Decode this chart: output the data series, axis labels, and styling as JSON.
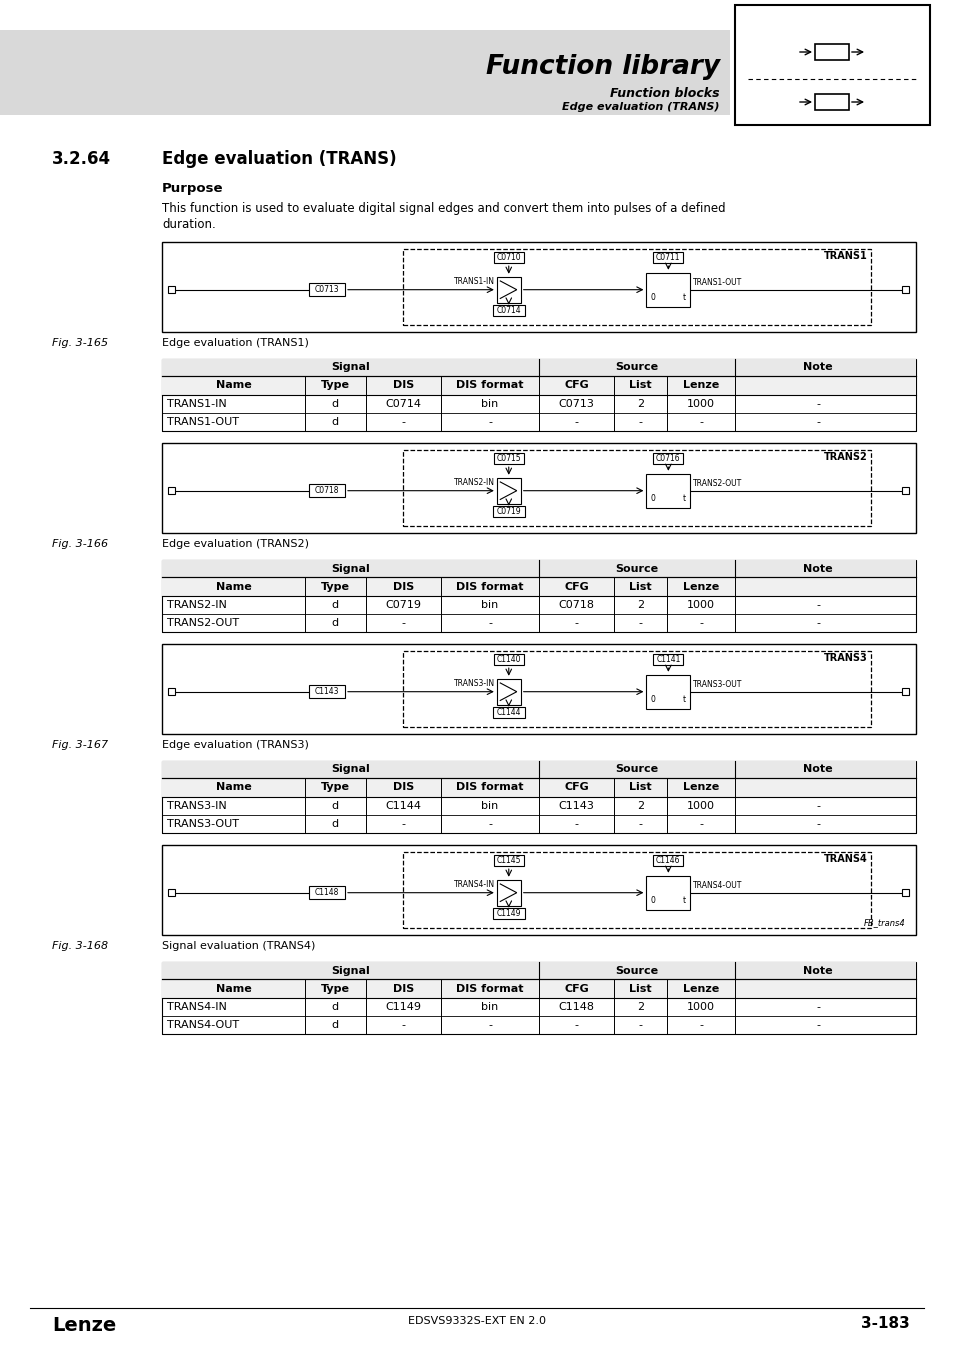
{
  "page_bg": "#ffffff",
  "header_bg": "#d9d9d9",
  "header_title": "Function library",
  "header_sub1": "Function blocks",
  "header_sub2": "Edge evaluation (TRANS)",
  "section_num": "3.2.64",
  "section_name": "Edge evaluation (TRANS)",
  "purpose_heading": "Purpose",
  "purpose_text1": "This function is used to evaluate digital signal edges and convert them into pulses of a defined",
  "purpose_text2": "duration.",
  "figures": [
    {
      "fig_label": "Fig. 3-165",
      "fig_caption": "Edge evaluation (TRANS1)",
      "diagram": {
        "block_name": "TRANS1",
        "input_code": "C0713",
        "dis_code": "C0714",
        "top_code1": "C0710",
        "top_code2": "C0711",
        "in_label": "TRANS1-IN",
        "out_label": "TRANS1-OUT",
        "extra_label": null
      },
      "table_rows": [
        [
          "TRANS1-IN",
          "d",
          "C0714",
          "bin",
          "C0713",
          "2",
          "1000",
          "-"
        ],
        [
          "TRANS1-OUT",
          "d",
          "-",
          "-",
          "-",
          "-",
          "-",
          "-"
        ]
      ]
    },
    {
      "fig_label": "Fig. 3-166",
      "fig_caption": "Edge evaluation (TRANS2)",
      "diagram": {
        "block_name": "TRANS2",
        "input_code": "C0718",
        "dis_code": "C0719",
        "top_code1": "C0715",
        "top_code2": "C0716",
        "in_label": "TRANS2-IN",
        "out_label": "TRANS2-OUT",
        "extra_label": null
      },
      "table_rows": [
        [
          "TRANS2-IN",
          "d",
          "C0719",
          "bin",
          "C0718",
          "2",
          "1000",
          "-"
        ],
        [
          "TRANS2-OUT",
          "d",
          "-",
          "-",
          "-",
          "-",
          "-",
          "-"
        ]
      ]
    },
    {
      "fig_label": "Fig. 3-167",
      "fig_caption": "Edge evaluation (TRANS3)",
      "diagram": {
        "block_name": "TRANS3",
        "input_code": "C1143",
        "dis_code": "C1144",
        "top_code1": "C1140",
        "top_code2": "C1141",
        "in_label": "TRANS3-IN",
        "out_label": "TRANS3-OUT",
        "extra_label": null
      },
      "table_rows": [
        [
          "TRANS3-IN",
          "d",
          "C1144",
          "bin",
          "C1143",
          "2",
          "1000",
          "-"
        ],
        [
          "TRANS3-OUT",
          "d",
          "-",
          "-",
          "-",
          "-",
          "-",
          "-"
        ]
      ]
    },
    {
      "fig_label": "Fig. 3-168",
      "fig_caption": "Signal evaluation (TRANS4)",
      "diagram": {
        "block_name": "TRANS4",
        "input_code": "C1148",
        "dis_code": "C1149",
        "top_code1": "C1145",
        "top_code2": "C1146",
        "in_label": "TRANS4-IN",
        "out_label": "TRANS4-OUT",
        "extra_label": "FB_trans4"
      },
      "table_rows": [
        [
          "TRANS4-IN",
          "d",
          "C1149",
          "bin",
          "C1148",
          "2",
          "1000",
          "-"
        ],
        [
          "TRANS4-OUT",
          "d",
          "-",
          "-",
          "-",
          "-",
          "-",
          "-"
        ]
      ]
    }
  ],
  "footer_left": "Lenze",
  "footer_center": "EDSVS9332S-EXT EN 2.0",
  "footer_right": "3-183"
}
